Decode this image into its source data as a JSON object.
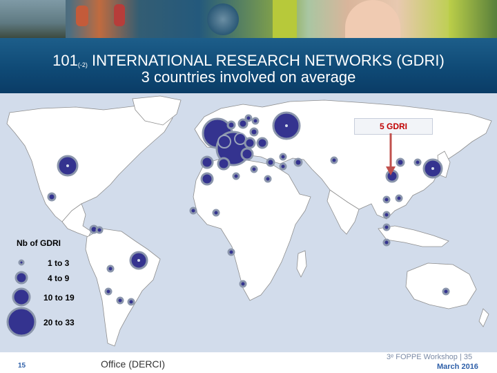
{
  "header": {
    "title_number": "101",
    "title_sub": "(-2)",
    "title_main": "INTERNATIONAL RESEARCH NETWORKS (GDRI)",
    "subtitle": "3 countries involved on average"
  },
  "map": {
    "callout": "5 GDRI",
    "colors": {
      "bubble": "#34338f",
      "ocean": "#d2dceb",
      "land": "#ffffff",
      "callout_text": "#c00000",
      "arrow": "#c0504d"
    }
  },
  "legend": {
    "title": "Nb of GDRI",
    "items": [
      {
        "label": "1 to 3"
      },
      {
        "label": "4 to 9"
      },
      {
        "label": "10 to 19"
      },
      {
        "label": "20 to 33"
      }
    ]
  },
  "footer": {
    "page_number": "15",
    "office": "Office (DERCI)",
    "workshop": "3ᵉ FOPPE Workshop | 35",
    "date": "March 2016"
  }
}
